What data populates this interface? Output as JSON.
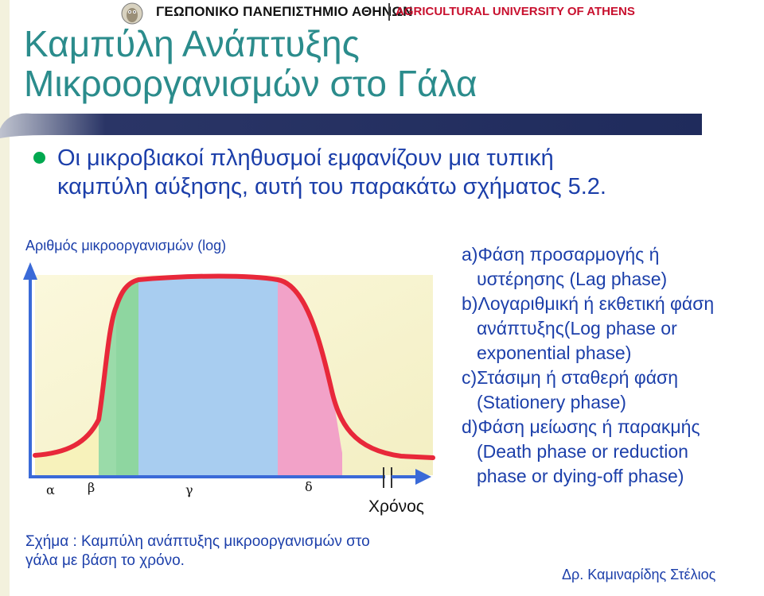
{
  "header": {
    "university_gr": "ΓΕΩΠΟΝΙΚΟ ΠΑΝΕΠΙΣΤΗΜΙΟ ΑΘΗΝΩΝ",
    "university_en": "AGRICULTURAL UNIVERSITY OF ATHENS",
    "emblem_icon": "owl-emblem-icon"
  },
  "title": {
    "line1": "Καμπύλη Ανάπτυξης",
    "line2": "Μικροοργανισμών στο Γάλα"
  },
  "bullet": {
    "line1": "Οι μικροβιακοί πληθυσμοί εμφανίζουν μια τυπική",
    "line2": "καμπύλη αύξησης, αυτή  του παρακάτω σχήματος 5.2."
  },
  "figure": {
    "ylabel": "Αριθμός μικροοργανισμών (log)",
    "xlabel": "Χρόνος",
    "phase_labels": [
      "α",
      "β",
      "γ",
      "δ"
    ],
    "colors": {
      "lag": "#f8f6c4",
      "log": "#8ed6a0",
      "stationary": "#a8cdf0",
      "death": "#f2a2c8",
      "background": "#faf6d4",
      "curve": "#e8283a",
      "axis": "#3a6ad8"
    },
    "caption_line1": "Σχήμα : Καμπύλη ανάπτυξης μικροοργανισμών στο",
    "caption_line2": "γάλα με βάση το χρόνο."
  },
  "legend": {
    "a_key": "a)",
    "a_line1": "Φάση προσαρμογής ή",
    "a_line2": "υστέρησης (Lag phase)",
    "b_key": "b)",
    "b_line1": "Λογαριθμική ή εκθετική φάση",
    "b_line2": "ανάπτυξης(Log phase or",
    "b_line3": "exponential phase)",
    "c_key": "c)",
    "c_line1": "Στάσιμη ή σταθερή φάση",
    "c_line2": "(Stationery phase)",
    "d_key": "d)",
    "d_line1": "Φάση μείωσης ή παρακμής",
    "d_line2": "(Death phase or reduction",
    "d_line3": "phase or dying-off phase)"
  },
  "author": "Δρ. Καμιναρίδης Στέλιος"
}
